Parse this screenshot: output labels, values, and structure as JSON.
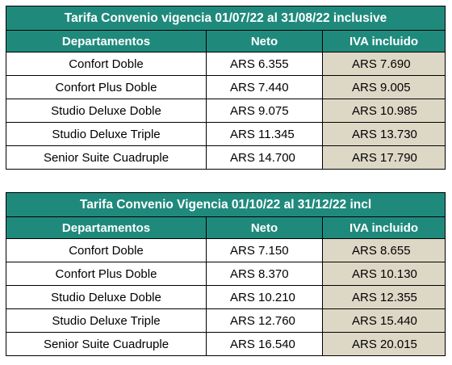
{
  "colors": {
    "header_bg": "#1f8a7c",
    "header_text": "#ffffff",
    "iva_bg": "#ddd8c6",
    "border": "#000000"
  },
  "tables": [
    {
      "title": "Tarifa Convenio vigencia 01/07/22 al 31/08/22 inclusive",
      "headers": [
        "Departamentos",
        "Neto",
        "IVA incluido"
      ],
      "rows": [
        {
          "departamento": "Confort Doble",
          "neto": "ARS 6.355",
          "iva": "ARS 7.690"
        },
        {
          "departamento": "Confort Plus Doble",
          "neto": "ARS 7.440",
          "iva": "ARS 9.005"
        },
        {
          "departamento": "Studio Deluxe Doble",
          "neto": "ARS 9.075",
          "iva": "ARS 10.985"
        },
        {
          "departamento": "Studio Deluxe Triple",
          "neto": "ARS 11.345",
          "iva": "ARS 13.730"
        },
        {
          "departamento": "Senior Suite Cuadruple",
          "neto": "ARS 14.700",
          "iva": "ARS 17.790"
        }
      ]
    },
    {
      "title": "Tarifa Convenio Vigencia 01/10/22 al 31/12/22 incl",
      "headers": [
        "Departamentos",
        "Neto",
        "IVA incluido"
      ],
      "rows": [
        {
          "departamento": "Confort Doble",
          "neto": "ARS 7.150",
          "iva": "ARS 8.655"
        },
        {
          "departamento": "Confort Plus Doble",
          "neto": "ARS 8.370",
          "iva": "ARS 10.130"
        },
        {
          "departamento": "Studio Deluxe Doble",
          "neto": "ARS 10.210",
          "iva": "ARS 12.355"
        },
        {
          "departamento": "Studio Deluxe Triple",
          "neto": "ARS 12.760",
          "iva": "ARS 15.440"
        },
        {
          "departamento": "Senior Suite Cuadruple",
          "neto": "ARS 16.540",
          "iva": "ARS 20.015"
        }
      ]
    }
  ]
}
